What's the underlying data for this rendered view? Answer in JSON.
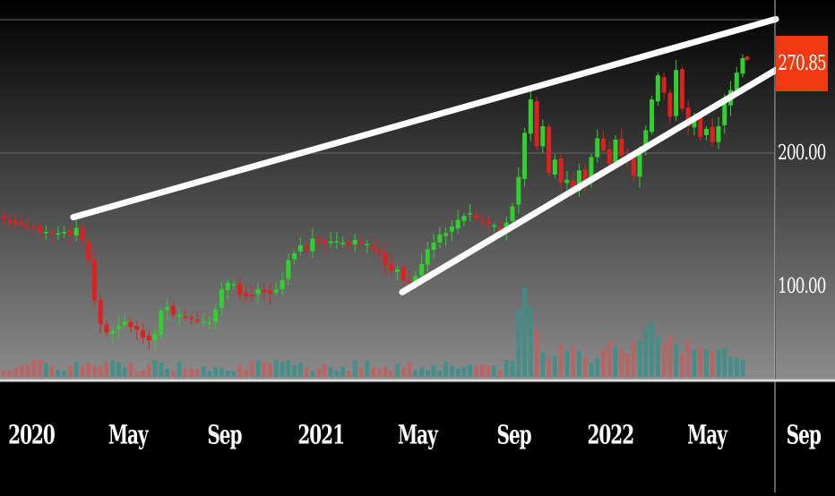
{
  "chart_data": {
    "type": "candlestick",
    "x_axis": {
      "ticks": [
        "2020",
        "May",
        "Sep",
        "2021",
        "May",
        "Sep",
        "2022",
        "May",
        "Sep"
      ],
      "bold_ticks": [
        "2020",
        "2021",
        "2022"
      ]
    },
    "y_axis": {
      "ticks": [
        "100.00",
        "200.00"
      ],
      "range": [
        30,
        305
      ]
    },
    "last_price": {
      "value": 270.85,
      "label": "270.85",
      "color": "#f23a12"
    },
    "colors": {
      "up": "#2ed12e",
      "down": "#e02020",
      "volume_up": "#3a8f8a",
      "volume_down": "#c06060",
      "trendline": "#ffffff",
      "grid": "#666666"
    },
    "weekly_closes": [
      151,
      148,
      147,
      146,
      145,
      144,
      141,
      141,
      140,
      140,
      141,
      139,
      144,
      135,
      120,
      90,
      72,
      66,
      67,
      71,
      74,
      70,
      68,
      62,
      60,
      65,
      82,
      85,
      79,
      79,
      77,
      76,
      75,
      74,
      73,
      83,
      98,
      103,
      102,
      94,
      93,
      94,
      98,
      96,
      95,
      98,
      105,
      120,
      125,
      131,
      128,
      136,
      134,
      133,
      134,
      134,
      133,
      131,
      135,
      133,
      132,
      128,
      125,
      116,
      112,
      113,
      105,
      103,
      108,
      117,
      128,
      133,
      139,
      140,
      145,
      150,
      153,
      155,
      151,
      150,
      147,
      146,
      141,
      148,
      160,
      182,
      215,
      240,
      205,
      220,
      185,
      195,
      178,
      180,
      173,
      187,
      178,
      197,
      211,
      202,
      192,
      210,
      198,
      196,
      183,
      203,
      217,
      240,
      258,
      245,
      227,
      262,
      233,
      220,
      227,
      212,
      218,
      208,
      220,
      237,
      247,
      260,
      270.85
    ],
    "trendlines": [
      {
        "name": "upper-channel",
        "points": [
          [
            "2020-03",
            152
          ],
          [
            "2022-08",
            300
          ]
        ]
      },
      {
        "name": "lower-channel",
        "points": [
          [
            "2021-04",
            96
          ],
          [
            "2022-08",
            262
          ]
        ]
      }
    ]
  }
}
